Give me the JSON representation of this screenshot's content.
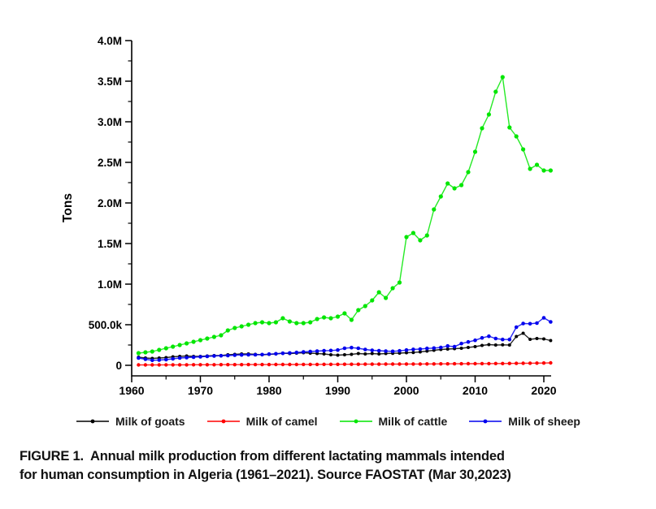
{
  "figure": {
    "y_axis_title": "Tons",
    "caption": {
      "line1": "FIGURE 1.  Annual milk production from different lactating mammals intended",
      "line2": "for human consumption in Algeria (1961–2021). Source FAOSTAT (Mar 30,2023)"
    }
  },
  "chart_data": {
    "type": "line",
    "title": "",
    "xlabel": "",
    "ylabel": "Tons",
    "xlim": [
      1960,
      2021
    ],
    "ylim": [
      0,
      4000000
    ],
    "grid": false,
    "legend_position": "bottom",
    "x_major_ticks": [
      1960,
      1970,
      1980,
      1990,
      2000,
      2010,
      2020
    ],
    "x_tick_labels": [
      "1960",
      "1970",
      "1980",
      "1990",
      "2000",
      "2010",
      "2020"
    ],
    "x_minor_ticks": [
      1965,
      1975,
      1985,
      1995,
      2005,
      2015
    ],
    "y_ticks": [
      {
        "label": "0",
        "value": 0
      },
      {
        "label": "500.0k",
        "value": 500000
      },
      {
        "label": "1.0M",
        "value": 1000000
      },
      {
        "label": "1.5M",
        "value": 1500000
      },
      {
        "label": "2.0M",
        "value": 2000000
      },
      {
        "label": "2.5M",
        "value": 2500000
      },
      {
        "label": "3.0M",
        "value": 3000000
      },
      {
        "label": "3.5M",
        "value": 3500000
      },
      {
        "label": "4.0M",
        "value": 4000000
      }
    ],
    "y_minor_ticks": [
      250000,
      750000,
      1250000,
      1750000,
      2250000,
      2750000,
      3250000,
      3750000
    ],
    "years": [
      1961,
      1962,
      1963,
      1964,
      1965,
      1966,
      1967,
      1968,
      1969,
      1970,
      1971,
      1972,
      1973,
      1974,
      1975,
      1976,
      1977,
      1978,
      1979,
      1980,
      1981,
      1982,
      1983,
      1984,
      1985,
      1986,
      1987,
      1988,
      1989,
      1990,
      1991,
      1992,
      1993,
      1994,
      1995,
      1996,
      1997,
      1998,
      1999,
      2000,
      2001,
      2002,
      2003,
      2004,
      2005,
      2006,
      2007,
      2008,
      2009,
      2010,
      2011,
      2012,
      2013,
      2014,
      2015,
      2016,
      2017,
      2018,
      2019,
      2020,
      2021
    ],
    "series": [
      {
        "name": "Milk of goats",
        "color": "#000000",
        "values": [
          100000,
          90000,
          85000,
          90000,
          95000,
          105000,
          110000,
          115000,
          110000,
          110000,
          115000,
          120000,
          120000,
          130000,
          135000,
          140000,
          140000,
          135000,
          130000,
          135000,
          140000,
          150000,
          145000,
          150000,
          155000,
          150000,
          145000,
          140000,
          130000,
          125000,
          130000,
          135000,
          145000,
          140000,
          145000,
          140000,
          145000,
          148000,
          150000,
          155000,
          158000,
          165000,
          175000,
          185000,
          195000,
          200000,
          205000,
          210000,
          220000,
          230000,
          245000,
          255000,
          250000,
          252000,
          250000,
          355000,
          395000,
          320000,
          330000,
          325000,
          305000
        ]
      },
      {
        "name": "Milk of camel",
        "color": "#ff0000",
        "values": [
          5000,
          5000,
          5000,
          5000,
          6000,
          6000,
          6000,
          6000,
          7000,
          7000,
          7000,
          7000,
          8000,
          8000,
          8000,
          8000,
          9000,
          9000,
          9000,
          9000,
          10000,
          10000,
          10000,
          10000,
          11000,
          11000,
          11000,
          12000,
          12000,
          12000,
          13000,
          13000,
          13000,
          14000,
          14000,
          14000,
          15000,
          15000,
          15000,
          16000,
          16000,
          16000,
          17000,
          17000,
          18000,
          18000,
          19000,
          19000,
          20000,
          20000,
          21000,
          21000,
          22000,
          22000,
          23000,
          24000,
          25000,
          26000,
          27000,
          28000,
          30000
        ]
      },
      {
        "name": "Milk of cattle",
        "color": "#00e600",
        "values": [
          150000,
          160000,
          170000,
          190000,
          210000,
          230000,
          250000,
          270000,
          290000,
          310000,
          330000,
          350000,
          370000,
          430000,
          460000,
          480000,
          500000,
          520000,
          530000,
          520000,
          530000,
          580000,
          540000,
          520000,
          520000,
          530000,
          570000,
          590000,
          580000,
          600000,
          640000,
          560000,
          680000,
          730000,
          800000,
          900000,
          830000,
          950000,
          1020000,
          1580000,
          1630000,
          1540000,
          1600000,
          1920000,
          2080000,
          2240000,
          2180000,
          2220000,
          2380000,
          2630000,
          2920000,
          3090000,
          3370000,
          3550000,
          2930000,
          2820000,
          2660000,
          2420000,
          2470000,
          2400000,
          2400000
        ]
      },
      {
        "name": "Milk of sheep",
        "color": "#0000ee",
        "values": [
          90000,
          75000,
          62000,
          65000,
          70000,
          80000,
          90000,
          95000,
          100000,
          105000,
          110000,
          115000,
          118000,
          120000,
          125000,
          128000,
          130000,
          130000,
          132000,
          138000,
          142000,
          148000,
          152000,
          158000,
          165000,
          170000,
          175000,
          180000,
          182000,
          188000,
          210000,
          218000,
          210000,
          195000,
          185000,
          180000,
          175000,
          172000,
          178000,
          188000,
          196000,
          200000,
          208000,
          212000,
          220000,
          238000,
          230000,
          268000,
          288000,
          308000,
          338000,
          358000,
          330000,
          318000,
          318000,
          470000,
          515000,
          512000,
          520000,
          585000,
          535000
        ]
      }
    ]
  }
}
